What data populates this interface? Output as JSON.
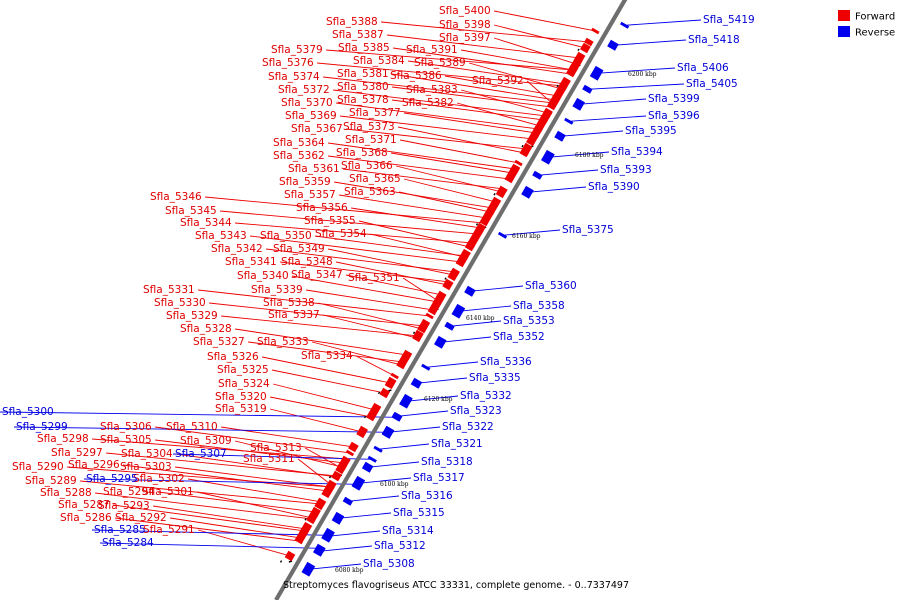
{
  "caption": "Streptomyces flavogriseus ATCC 33331, complete genome. - 0..7337497",
  "legend": {
    "forward": {
      "label": "Forward",
      "color": "#ee0000"
    },
    "reverse": {
      "label": "Reverse",
      "color": "#0000ee"
    }
  },
  "ticks": [
    "6080 kbp",
    "6100 kbp",
    "6120 kbp",
    "6140 kbp",
    "6160 kbp",
    "6180 kbp",
    "6200 kbp"
  ],
  "forward_genes": [
    "Sfla_5400",
    "Sfla_5398",
    "Sfla_5397",
    "Sfla_5388",
    "Sfla_5387",
    "Sfla_5385",
    "Sfla_5391",
    "Sfla_5384",
    "Sfla_5389",
    "Sfla_5379",
    "Sfla_5376",
    "Sfla_5381",
    "Sfla_5386",
    "Sfla_5392",
    "Sfla_5374",
    "Sfla_5380",
    "Sfla_5383",
    "Sfla_5372",
    "Sfla_5378",
    "Sfla_5382",
    "Sfla_5370",
    "Sfla_5377",
    "Sfla_5369",
    "Sfla_5373",
    "Sfla_5367",
    "Sfla_5371",
    "Sfla_5364",
    "Sfla_5368",
    "Sfla_5362",
    "Sfla_5366",
    "Sfla_5361",
    "Sfla_5365",
    "Sfla_5359",
    "Sfla_5363",
    "Sfla_5357",
    "Sfla_5346",
    "Sfla_5356",
    "Sfla_5345",
    "Sfla_5355",
    "Sfla_5344",
    "Sfla_5354",
    "Sfla_5343",
    "Sfla_5350",
    "Sfla_5342",
    "Sfla_5349",
    "Sfla_5341",
    "Sfla_5348",
    "Sfla_5340",
    "Sfla_5347",
    "Sfla_5351",
    "Sfla_5331",
    "Sfla_5339",
    "Sfla_5330",
    "Sfla_5338",
    "Sfla_5329",
    "Sfla_5337",
    "Sfla_5328",
    "Sfla_5327",
    "Sfla_5333",
    "Sfla_5326",
    "Sfla_5334",
    "Sfla_5325",
    "Sfla_5324",
    "Sfla_5320",
    "Sfla_5319",
    "Sfla_5306",
    "Sfla_5310",
    "Sfla_5305",
    "Sfla_5309",
    "Sfla_5313",
    "Sfla_5304",
    "Sfla_5311",
    "Sfla_5303",
    "Sfla_5302",
    "Sfla_5301",
    "Sfla_5298",
    "Sfla_5297",
    "Sfla_5296",
    "Sfla_5290",
    "Sfla_5289",
    "Sfla_5288",
    "Sfla_5294",
    "Sfla_5293",
    "Sfla_5287",
    "Sfla_5292",
    "Sfla_5286",
    "Sfla_5291"
  ],
  "reverse_genes": [
    "Sfla_5419",
    "Sfla_5418",
    "Sfla_5406",
    "Sfla_5405",
    "Sfla_5399",
    "Sfla_5396",
    "Sfla_5395",
    "Sfla_5394",
    "Sfla_5393",
    "Sfla_5390",
    "Sfla_5375",
    "Sfla_5360",
    "Sfla_5358",
    "Sfla_5353",
    "Sfla_5352",
    "Sfla_5336",
    "Sfla_5335",
    "Sfla_5332",
    "Sfla_5323",
    "Sfla_5322",
    "Sfla_5321",
    "Sfla_5318",
    "Sfla_5317",
    "Sfla_5316",
    "Sfla_5315",
    "Sfla_5314",
    "Sfla_5312",
    "Sfla_5308",
    "Sfla_5300",
    "Sfla_5299",
    "Sfla_5307",
    "Sfla_5295",
    "Sfla_5285",
    "Sfla_5284"
  ]
}
